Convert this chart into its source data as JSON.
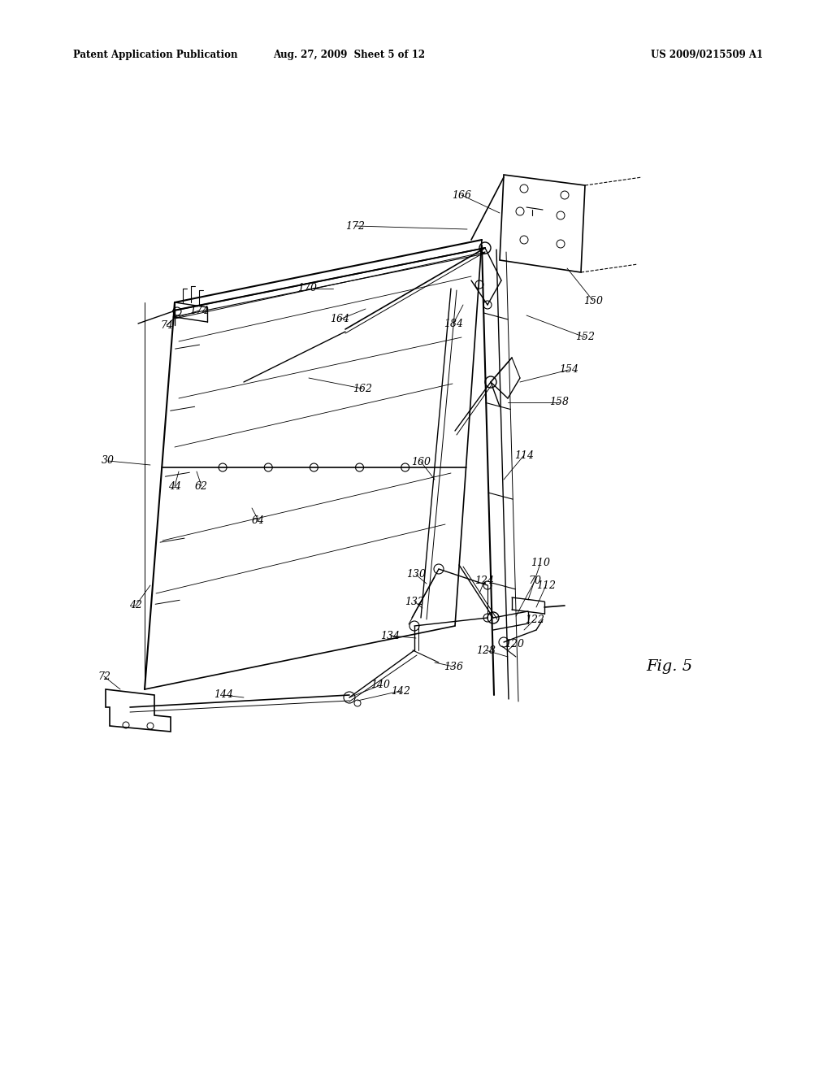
{
  "title_left": "Patent Application Publication",
  "title_mid": "Aug. 27, 2009  Sheet 5 of 12",
  "title_right": "US 2009/0215509 A1",
  "fig_label": "Fig. 5",
  "bg_color": "#ffffff",
  "line_color": "#000000"
}
